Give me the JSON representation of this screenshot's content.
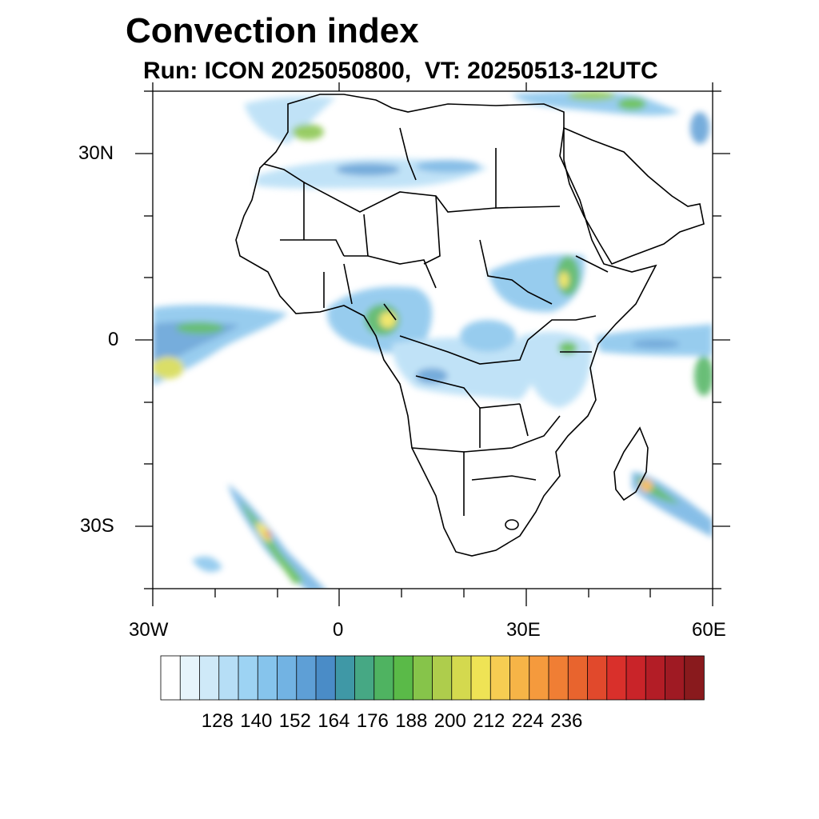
{
  "title": "Convection index",
  "subtitle": "Run: ICON 2025050800,  VT: 20250513-12UTC",
  "map": {
    "region": "Africa",
    "projection": "lat-lon",
    "lon_range": [
      -30,
      60
    ],
    "lat_range": [
      -40,
      40
    ],
    "lat_labels": [
      "30N",
      "0",
      "30S"
    ],
    "lon_labels": [
      "30W",
      "0",
      "30E",
      "60E"
    ]
  },
  "colorbar": {
    "labels": [
      "128",
      "140",
      "152",
      "164",
      "176",
      "188",
      "200",
      "212",
      "224",
      "236"
    ],
    "colors": [
      "#ffffff",
      "#e6f4fb",
      "#cfe9f8",
      "#b6def6",
      "#9dd3f3",
      "#86c4ec",
      "#72b3e3",
      "#5e9fd6",
      "#4a8cc7",
      "#3f98a6",
      "#46a884",
      "#4fb361",
      "#5aba48",
      "#86c44a",
      "#aecd4c",
      "#d4d94e",
      "#efe355",
      "#f6cd52",
      "#f6b447",
      "#f59a3d",
      "#f07e34",
      "#e8642e",
      "#e1492c",
      "#d9302b",
      "#c92429",
      "#b31d26",
      "#9f1a23",
      "#891a1d"
    ]
  }
}
